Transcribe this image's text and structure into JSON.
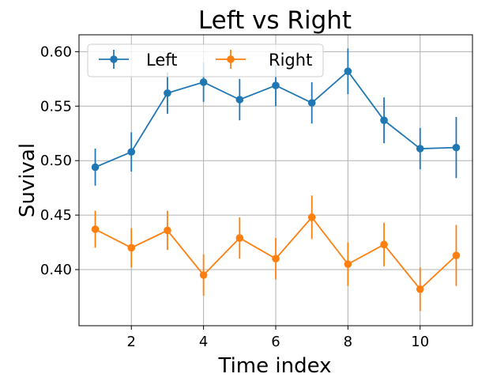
{
  "chart_data": {
    "type": "line",
    "title": "Left vs Right",
    "xlabel": "Time index",
    "ylabel": "Suvival",
    "xlim": [
      0.55,
      11.45
    ],
    "ylim": [
      0.3485,
      0.6155
    ],
    "xticks": [
      2,
      4,
      6,
      8,
      10
    ],
    "xtick_labels": [
      "2",
      "4",
      "6",
      "8",
      "10"
    ],
    "yticks": [
      0.4,
      0.45,
      0.5,
      0.55,
      0.6
    ],
    "ytick_labels": [
      "0.40",
      "0.45",
      "0.50",
      "0.55",
      "0.60"
    ],
    "grid": true,
    "legend_position": "top-left",
    "x": [
      1,
      2,
      3,
      4,
      5,
      6,
      7,
      8,
      9,
      10,
      11
    ],
    "series": [
      {
        "name": "Left",
        "color": "#1f77b4",
        "values": [
          0.494,
          0.508,
          0.562,
          0.572,
          0.556,
          0.569,
          0.553,
          0.582,
          0.537,
          0.511,
          0.512
        ],
        "errors": [
          0.017,
          0.018,
          0.019,
          0.018,
          0.019,
          0.019,
          0.019,
          0.021,
          0.021,
          0.019,
          0.028
        ]
      },
      {
        "name": "Right",
        "color": "#ff7f0e",
        "values": [
          0.437,
          0.42,
          0.436,
          0.395,
          0.429,
          0.41,
          0.448,
          0.405,
          0.423,
          0.382,
          0.413
        ],
        "errors": [
          0.017,
          0.018,
          0.018,
          0.019,
          0.019,
          0.019,
          0.02,
          0.02,
          0.02,
          0.02,
          0.028
        ]
      }
    ]
  }
}
